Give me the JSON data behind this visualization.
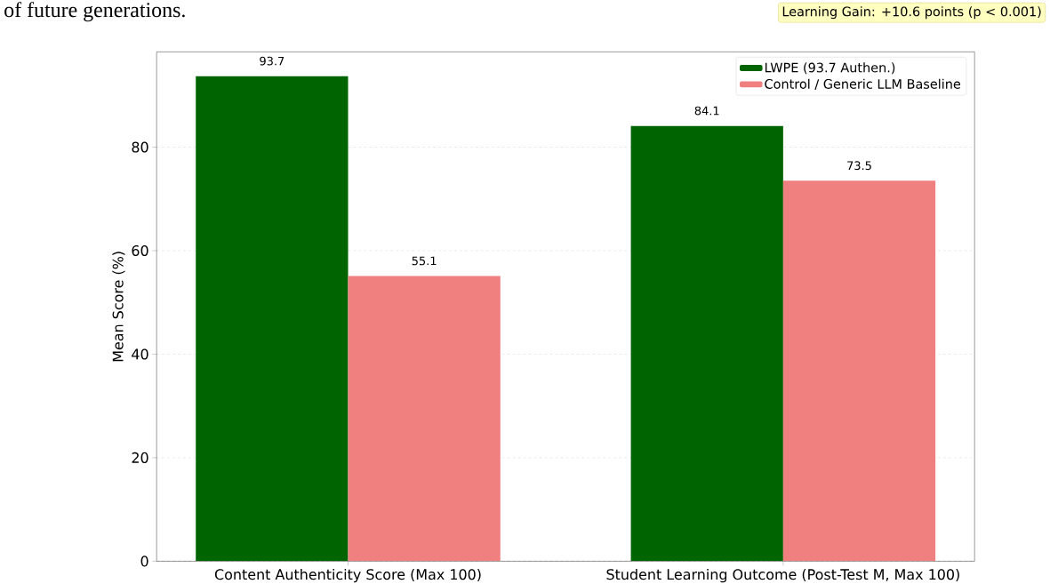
{
  "chart_data": {
    "type": "bar",
    "annotations": [
      "of future generations.",
      "Learning Gain: +10.6 points (p < 0.001)"
    ],
    "ylabel": "Mean Score (%)",
    "categories": [
      "Content Authenticity Score (Max 100)",
      "Student Learning Outcome (Post-Test M, Max 100)"
    ],
    "series": [
      {
        "name": "LWPE (93.7 Authen.)",
        "color": "#006400",
        "values": [
          93.7,
          84.1
        ],
        "value_labels": [
          "93.7",
          "84.1"
        ]
      },
      {
        "name": "Control / Generic LLM Baseline",
        "color": "#f08080",
        "values": [
          55.1,
          73.5
        ],
        "value_labels": [
          "55.1",
          "73.5"
        ]
      }
    ],
    "ylim": [
      0,
      98.4
    ],
    "yticks": [
      0,
      20,
      40,
      60,
      80
    ],
    "grid": "y",
    "legend": "top right"
  }
}
